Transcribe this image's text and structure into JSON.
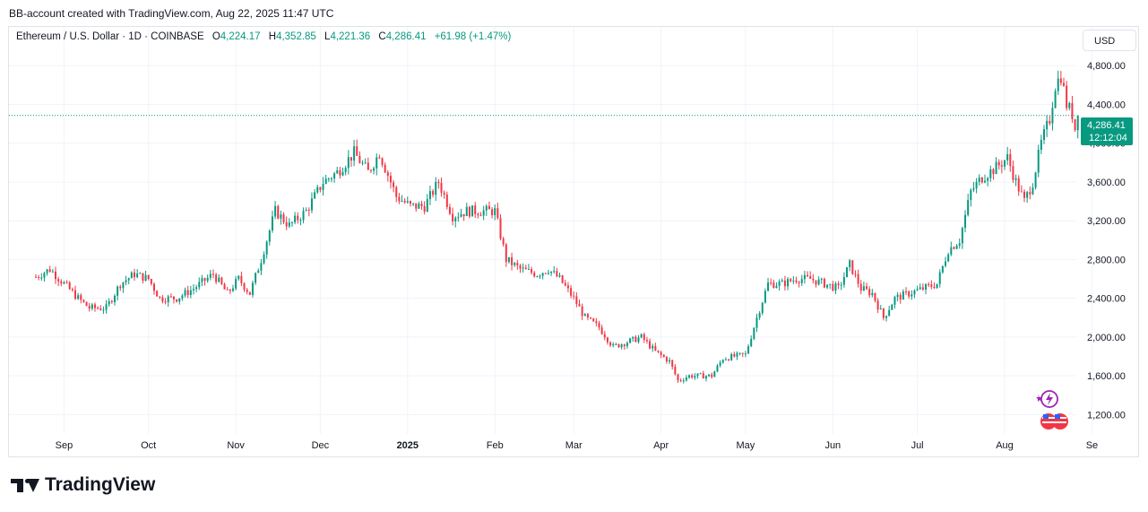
{
  "header": {
    "created_by": "BB-account created with TradingView.com, Aug 22, 2025 11:47 UTC"
  },
  "legend": {
    "symbol": "Ethereum / U.S. Dollar · 1D · COINBASE",
    "open_label": "O",
    "open": "4,224.17",
    "high_label": "H",
    "high": "4,352.85",
    "low_label": "L",
    "low": "4,221.36",
    "close_label": "C",
    "close": "4,286.41",
    "change": "+61.98 (+1.47%)"
  },
  "currency_button": "USD",
  "price_tag": {
    "price": "4,286.41",
    "countdown": "12:12:04"
  },
  "brand": {
    "name": "TradingView"
  },
  "icons": [
    "tradingview-logo-icon",
    "lightning-icon",
    "us-flag-icon"
  ],
  "colors": {
    "up": "#089981",
    "down": "#f23645",
    "grid": "#f0f3fa",
    "text": "#131722"
  },
  "chart_data": {
    "type": "candlestick",
    "symbol": "ETH/USD",
    "interval": "1D",
    "y_ticks": [
      "1,200.00",
      "1,600.00",
      "2,000.00",
      "2,400.00",
      "2,800.00",
      "3,200.00",
      "3,600.00",
      "4,000.00",
      "4,400.00",
      "4,800.00"
    ],
    "y_tick_values": [
      1200,
      1600,
      2000,
      2400,
      2800,
      3200,
      3600,
      4000,
      4400,
      4800
    ],
    "ylim": [
      1000,
      5200
    ],
    "x_ticks": [
      "Sep",
      "Oct",
      "Nov",
      "Dec",
      "2025",
      "Feb",
      "Mar",
      "Apr",
      "May",
      "Jun",
      "Jul",
      "Aug",
      "Se"
    ],
    "x_tick_days": [
      0,
      30,
      61,
      91,
      122,
      153,
      181,
      212,
      242,
      273,
      303,
      334,
      365
    ],
    "x_day_range": [
      -10,
      369
    ],
    "grid": true,
    "last_close": 4286.41,
    "closes": [
      {
        "day": -10,
        "close": 2620
      },
      {
        "day": -5,
        "close": 2700
      },
      {
        "day": 0,
        "close": 2550
      },
      {
        "day": 5,
        "close": 2400
      },
      {
        "day": 9,
        "close": 2300
      },
      {
        "day": 15,
        "close": 2300
      },
      {
        "day": 20,
        "close": 2550
      },
      {
        "day": 25,
        "close": 2650
      },
      {
        "day": 30,
        "close": 2600
      },
      {
        "day": 34,
        "close": 2400
      },
      {
        "day": 40,
        "close": 2400
      },
      {
        "day": 46,
        "close": 2500
      },
      {
        "day": 53,
        "close": 2650
      },
      {
        "day": 58,
        "close": 2450
      },
      {
        "day": 62,
        "close": 2600
      },
      {
        "day": 66,
        "close": 2450
      },
      {
        "day": 70,
        "close": 2800
      },
      {
        "day": 75,
        "close": 3300
      },
      {
        "day": 80,
        "close": 3150
      },
      {
        "day": 86,
        "close": 3300
      },
      {
        "day": 92,
        "close": 3600
      },
      {
        "day": 97,
        "close": 3700
      },
      {
        "day": 103,
        "close": 3900
      },
      {
        "day": 108,
        "close": 3700
      },
      {
        "day": 112,
        "close": 3900
      },
      {
        "day": 118,
        "close": 3450
      },
      {
        "day": 123,
        "close": 3350
      },
      {
        "day": 128,
        "close": 3350
      },
      {
        "day": 133,
        "close": 3600
      },
      {
        "day": 138,
        "close": 3250
      },
      {
        "day": 143,
        "close": 3300
      },
      {
        "day": 148,
        "close": 3300
      },
      {
        "day": 153,
        "close": 3300
      },
      {
        "day": 157,
        "close": 2800
      },
      {
        "day": 162,
        "close": 2700
      },
      {
        "day": 168,
        "close": 2650
      },
      {
        "day": 172,
        "close": 2700
      },
      {
        "day": 176,
        "close": 2600
      },
      {
        "day": 181,
        "close": 2400
      },
      {
        "day": 185,
        "close": 2200
      },
      {
        "day": 190,
        "close": 2100
      },
      {
        "day": 195,
        "close": 1900
      },
      {
        "day": 200,
        "close": 1950
      },
      {
        "day": 205,
        "close": 2000
      },
      {
        "day": 210,
        "close": 1850
      },
      {
        "day": 215,
        "close": 1750
      },
      {
        "day": 218,
        "close": 1550
      },
      {
        "day": 222,
        "close": 1600
      },
      {
        "day": 226,
        "close": 1600
      },
      {
        "day": 230,
        "close": 1600
      },
      {
        "day": 234,
        "close": 1780
      },
      {
        "day": 238,
        "close": 1800
      },
      {
        "day": 242,
        "close": 1820
      },
      {
        "day": 246,
        "close": 2200
      },
      {
        "day": 250,
        "close": 2550
      },
      {
        "day": 255,
        "close": 2550
      },
      {
        "day": 260,
        "close": 2600
      },
      {
        "day": 265,
        "close": 2600
      },
      {
        "day": 270,
        "close": 2550
      },
      {
        "day": 275,
        "close": 2500
      },
      {
        "day": 279,
        "close": 2750
      },
      {
        "day": 283,
        "close": 2500
      },
      {
        "day": 287,
        "close": 2450
      },
      {
        "day": 291,
        "close": 2200
      },
      {
        "day": 295,
        "close": 2400
      },
      {
        "day": 300,
        "close": 2450
      },
      {
        "day": 305,
        "close": 2500
      },
      {
        "day": 310,
        "close": 2550
      },
      {
        "day": 314,
        "close": 2900
      },
      {
        "day": 318,
        "close": 3000
      },
      {
        "day": 322,
        "close": 3500
      },
      {
        "day": 326,
        "close": 3650
      },
      {
        "day": 331,
        "close": 3750
      },
      {
        "day": 335,
        "close": 3850
      },
      {
        "day": 338,
        "close": 3600
      },
      {
        "day": 341,
        "close": 3400
      },
      {
        "day": 344,
        "close": 3600
      },
      {
        "day": 347,
        "close": 4000
      },
      {
        "day": 350,
        "close": 4250
      },
      {
        "day": 352,
        "close": 4600
      },
      {
        "day": 354,
        "close": 4700
      },
      {
        "day": 356,
        "close": 4400
      },
      {
        "day": 358,
        "close": 4300
      },
      {
        "day": 359,
        "close": 4150
      },
      {
        "day": 360,
        "close": 4286.41
      }
    ]
  }
}
